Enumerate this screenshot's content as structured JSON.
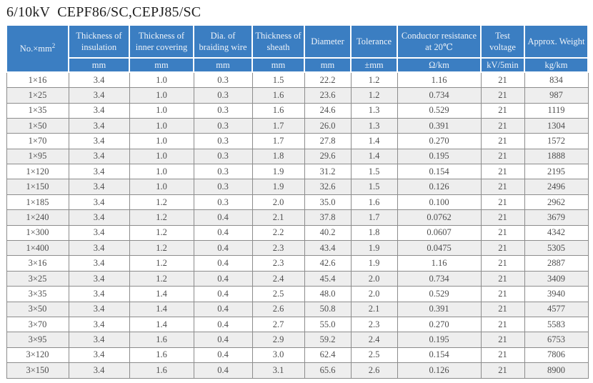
{
  "title": "6/10kV  CEPF86/SC,CEPJ85/SC",
  "colors": {
    "header_bg": "#3b7ec2",
    "header_text": "#eef3f9",
    "border_gray": "#8c8c8c",
    "stripe": "#eeeeee",
    "row_text": "#4f4f4f",
    "title_color": "#1f1f1f"
  },
  "table": {
    "columns": [
      {
        "label": "No.×mm",
        "sup": "2",
        "unit": ""
      },
      {
        "label": "Thickness of insulation",
        "unit": "mm"
      },
      {
        "label": "Thickness of inner covering",
        "unit": "mm"
      },
      {
        "label": "Dia. of braiding wire",
        "unit": "mm"
      },
      {
        "label": "Thickness of sheath",
        "unit": "mm"
      },
      {
        "label": "Diameter",
        "unit": "mm"
      },
      {
        "label": "Tolerance",
        "unit": "±mm"
      },
      {
        "label": "Conductor resistance at 20℃",
        "unit": "Ω/km"
      },
      {
        "label": "Test voltage",
        "unit": "kV/5min"
      },
      {
        "label": "Approx. Weight",
        "unit": "kg/km"
      }
    ],
    "rows": [
      [
        "1×16",
        "3.4",
        "1.0",
        "0.3",
        "1.5",
        "22.2",
        "1.2",
        "1.16",
        "21",
        "834"
      ],
      [
        "1×25",
        "3.4",
        "1.0",
        "0.3",
        "1.6",
        "23.6",
        "1.2",
        "0.734",
        "21",
        "987"
      ],
      [
        "1×35",
        "3.4",
        "1.0",
        "0.3",
        "1.6",
        "24.6",
        "1.3",
        "0.529",
        "21",
        "1119"
      ],
      [
        "1×50",
        "3.4",
        "1.0",
        "0.3",
        "1.7",
        "26.0",
        "1.3",
        "0.391",
        "21",
        "1304"
      ],
      [
        "1×70",
        "3.4",
        "1.0",
        "0.3",
        "1.7",
        "27.8",
        "1.4",
        "0.270",
        "21",
        "1572"
      ],
      [
        "1×95",
        "3.4",
        "1.0",
        "0.3",
        "1.8",
        "29.6",
        "1.4",
        "0.195",
        "21",
        "1888"
      ],
      [
        "1×120",
        "3.4",
        "1.0",
        "0.3",
        "1.9",
        "31.2",
        "1.5",
        "0.154",
        "21",
        "2195"
      ],
      [
        "1×150",
        "3.4",
        "1.0",
        "0.3",
        "1.9",
        "32.6",
        "1.5",
        "0.126",
        "21",
        "2496"
      ],
      [
        "1×185",
        "3.4",
        "1.2",
        "0.3",
        "2.0",
        "35.0",
        "1.6",
        "0.100",
        "21",
        "2962"
      ],
      [
        "1×240",
        "3.4",
        "1.2",
        "0.4",
        "2.1",
        "37.8",
        "1.7",
        "0.0762",
        "21",
        "3679"
      ],
      [
        "1×300",
        "3.4",
        "1.2",
        "0.4",
        "2.2",
        "40.2",
        "1.8",
        "0.0607",
        "21",
        "4342"
      ],
      [
        "1×400",
        "3.4",
        "1.2",
        "0.4",
        "2.3",
        "43.4",
        "1.9",
        "0.0475",
        "21",
        "5305"
      ],
      [
        "3×16",
        "3.4",
        "1.2",
        "0.4",
        "2.3",
        "42.6",
        "1.9",
        "1.16",
        "21",
        "2887"
      ],
      [
        "3×25",
        "3.4",
        "1.2",
        "0.4",
        "2.4",
        "45.4",
        "2.0",
        "0.734",
        "21",
        "3409"
      ],
      [
        "3×35",
        "3.4",
        "1.4",
        "0.4",
        "2.5",
        "48.0",
        "2.0",
        "0.529",
        "21",
        "3940"
      ],
      [
        "3×50",
        "3.4",
        "1.4",
        "0.4",
        "2.6",
        "50.8",
        "2.1",
        "0.391",
        "21",
        "4577"
      ],
      [
        "3×70",
        "3.4",
        "1.4",
        "0.4",
        "2.7",
        "55.0",
        "2.3",
        "0.270",
        "21",
        "5583"
      ],
      [
        "3×95",
        "3.4",
        "1.6",
        "0.4",
        "2.9",
        "59.2",
        "2.4",
        "0.195",
        "21",
        "6753"
      ],
      [
        "3×120",
        "3.4",
        "1.6",
        "0.4",
        "3.0",
        "62.4",
        "2.5",
        "0.154",
        "21",
        "7806"
      ],
      [
        "3×150",
        "3.4",
        "1.6",
        "0.4",
        "3.1",
        "65.6",
        "2.6",
        "0.126",
        "21",
        "8900"
      ]
    ]
  }
}
